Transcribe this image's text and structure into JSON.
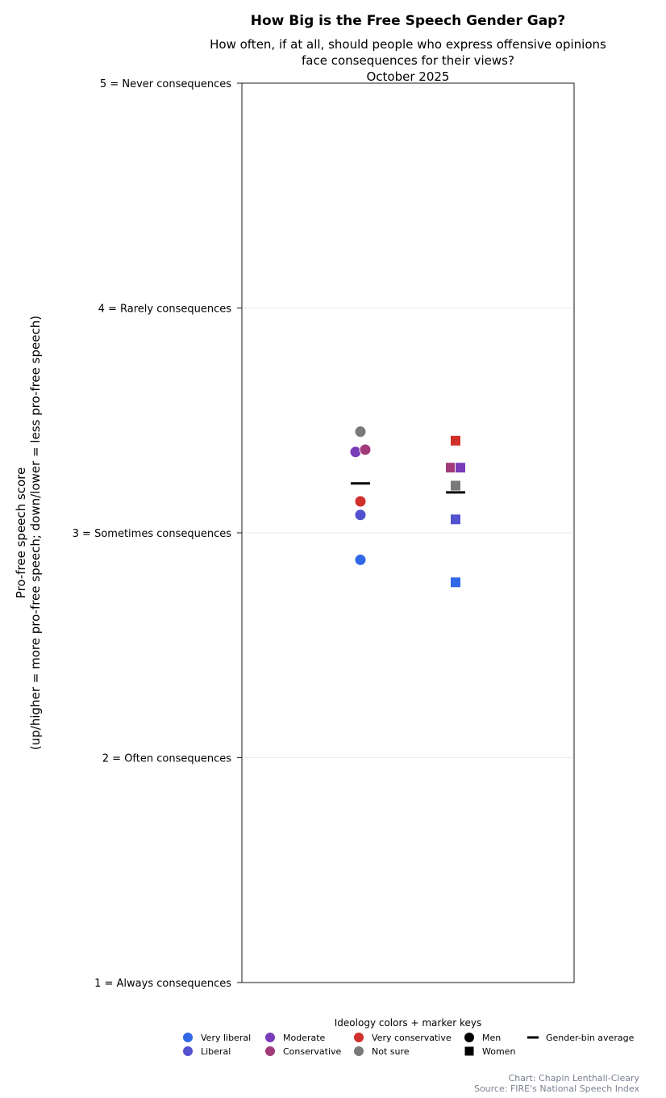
{
  "chart_data": {
    "type": "scatter",
    "title": "How Big is the Free Speech Gender Gap?",
    "subtitle_lines": [
      "How often, if at all, should people who express offensive opinions",
      "face consequences for their views?",
      "October 2025"
    ],
    "ylabel_lines": [
      "Pro-free speech score",
      "(up/higher = more pro-free speech; down/lower = less pro-free speech)"
    ],
    "ylim": [
      1,
      5
    ],
    "yticks": [
      {
        "value": 5,
        "label": "5 = Never consequences"
      },
      {
        "value": 4,
        "label": "4 = Rarely consequences"
      },
      {
        "value": 3,
        "label": "3 = Sometimes consequences"
      },
      {
        "value": 2,
        "label": "2 = Often consequences"
      },
      {
        "value": 1,
        "label": "1 = Always consequences"
      }
    ],
    "grid": true,
    "groups": [
      {
        "key": "men",
        "marker": "circle",
        "average": 3.22,
        "points": [
          {
            "ideology": "Very liberal",
            "value": 2.88
          },
          {
            "ideology": "Liberal",
            "value": 3.08
          },
          {
            "ideology": "Very conservative",
            "value": 3.14
          },
          {
            "ideology": "Moderate",
            "value": 3.36
          },
          {
            "ideology": "Conservative",
            "value": 3.37
          },
          {
            "ideology": "Not sure",
            "value": 3.45
          }
        ]
      },
      {
        "key": "women",
        "marker": "square",
        "average": 3.18,
        "points": [
          {
            "ideology": "Very liberal",
            "value": 2.78
          },
          {
            "ideology": "Liberal",
            "value": 3.06
          },
          {
            "ideology": "Not sure",
            "value": 3.21
          },
          {
            "ideology": "Conservative",
            "value": 3.29
          },
          {
            "ideology": "Moderate",
            "value": 3.29
          },
          {
            "ideology": "Very conservative",
            "value": 3.41
          }
        ]
      }
    ],
    "colors": {
      "Very liberal": "#3068e8",
      "Liberal": "#5252d0",
      "Moderate": "#7a3cb8",
      "Conservative": "#a23a7a",
      "Very conservative": "#d0302a",
      "Not sure": "#7a7a7a"
    },
    "legend": {
      "title": "Ideology colors + marker keys",
      "placement": "bottom",
      "items": [
        {
          "label": "Very liberal",
          "kind": "circle",
          "color": "#3068e8"
        },
        {
          "label": "Liberal",
          "kind": "circle",
          "color": "#5252d0"
        },
        {
          "label": "Moderate",
          "kind": "circle",
          "color": "#7a3cb8"
        },
        {
          "label": "Conservative",
          "kind": "circle",
          "color": "#a23a7a"
        },
        {
          "label": "Very conservative",
          "kind": "circle",
          "color": "#d0302a"
        },
        {
          "label": "Not sure",
          "kind": "circle",
          "color": "#7a7a7a"
        },
        {
          "label": "Men",
          "kind": "circle",
          "color": "#000000"
        },
        {
          "label": "Women",
          "kind": "square",
          "color": "#000000"
        },
        {
          "label": "Gender-bin average",
          "kind": "dash",
          "color": "#000000"
        }
      ]
    },
    "credits": [
      "Chart: Chapin Lenthall-Cleary",
      "Source: FIRE's National Speech Index"
    ]
  }
}
